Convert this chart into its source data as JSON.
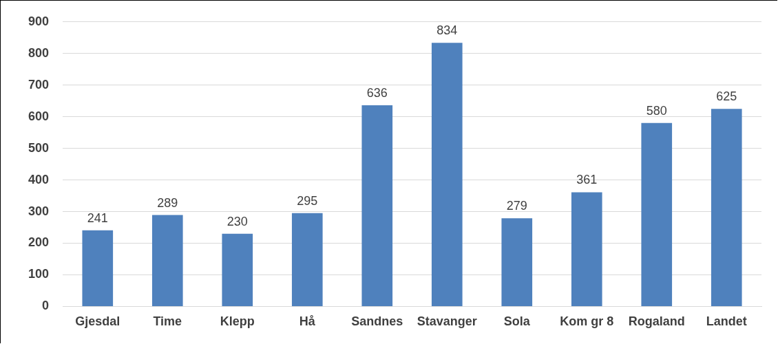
{
  "chart_data": {
    "type": "bar",
    "categories": [
      "Gjesdal",
      "Time",
      "Klepp",
      "Hå",
      "Sandnes",
      "Stavanger",
      "Sola",
      "Kom gr 8",
      "Rogaland",
      "Landet"
    ],
    "values": [
      241,
      289,
      230,
      295,
      636,
      834,
      279,
      361,
      580,
      625
    ],
    "color": "#4f81bd",
    "ylim": [
      0,
      900
    ],
    "yticks": [
      0,
      100,
      200,
      300,
      400,
      500,
      600,
      700,
      800,
      900
    ],
    "grid": "y",
    "data_labels": true,
    "legend": false
  }
}
